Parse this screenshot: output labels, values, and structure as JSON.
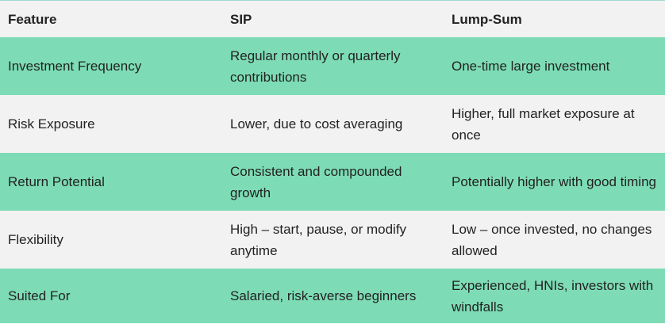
{
  "table": {
    "header": [
      "Feature",
      "SIP",
      "Lump-Sum"
    ],
    "rows": [
      [
        "Investment Frequency",
        "Regular monthly or quarterly contributions",
        "One-time large investment"
      ],
      [
        "Risk Exposure",
        "Lower, due to cost averaging",
        "Higher, full market exposure at once"
      ],
      [
        "Return Potential",
        "Consistent and compounded growth",
        "Potentially higher with good timing"
      ],
      [
        "Flexibility",
        "High – start, pause, or modify anytime",
        "Low – once invested, no changes allowed"
      ],
      [
        "Suited For",
        "Salaried, risk-averse beginners",
        "Experienced, HNIs, investors with windfalls"
      ]
    ]
  }
}
